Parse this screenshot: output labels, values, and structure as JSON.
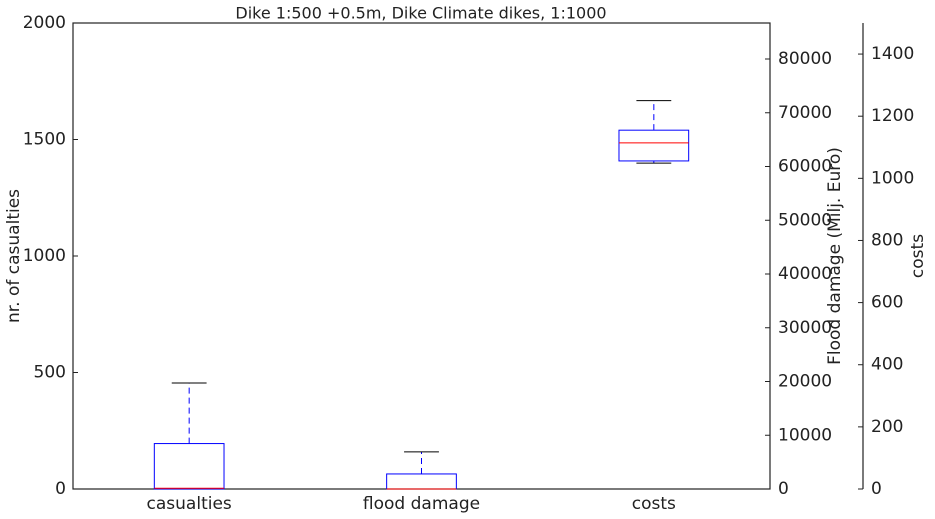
{
  "chart_data": {
    "type": "box",
    "title": "Dike 1:500 +0.5m, Dike Climate dikes, 1:1000",
    "categories": [
      "casualties",
      "flood damage",
      "costs"
    ],
    "boxes": [
      {
        "min": 0,
        "q1": 0,
        "median": 3,
        "q3": 195,
        "max": 455,
        "axis": "y"
      },
      {
        "min": 0,
        "q1": 0,
        "median": 0,
        "q3": 2800,
        "max": 6900,
        "axis": "y2"
      },
      {
        "min": 1049,
        "q1": 1056,
        "median": 1114,
        "q3": 1155,
        "max": 1250,
        "axis": "y3"
      }
    ],
    "box_color": "#0000ff",
    "median_color": "#ff0000",
    "cap_color": "#000000",
    "ylabel": "nr. of casualties",
    "ylim": [
      0,
      2000
    ],
    "yticks": [
      0,
      500,
      1000,
      1500,
      2000
    ],
    "y2label": "Flood damage (Milj. Euro)",
    "y2lim": [
      0,
      86700
    ],
    "y2ticks": [
      0,
      10000,
      20000,
      30000,
      40000,
      50000,
      60000,
      70000,
      80000
    ],
    "y3label": "costs",
    "y3lim": [
      0,
      1500
    ],
    "y3ticks": [
      0,
      200,
      400,
      600,
      800,
      1000,
      1200,
      1400
    ]
  }
}
